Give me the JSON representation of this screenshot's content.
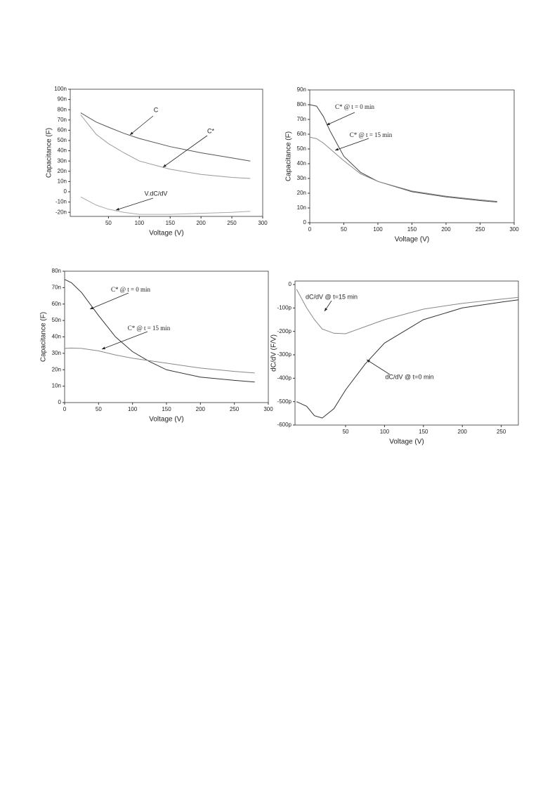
{
  "chart_data": [
    {
      "type": "line",
      "x_label": "Voltage (V)",
      "y_label": "Capacitance (F)",
      "x": [
        5,
        30,
        50,
        75,
        100,
        150,
        200,
        250,
        280
      ],
      "xlim": [
        -12,
        300
      ],
      "xticks": [
        50,
        100,
        150,
        200,
        250,
        300
      ],
      "ylim": [
        -24,
        100
      ],
      "yticks": [
        {
          "value": -20,
          "label": "-20n"
        },
        {
          "value": -10,
          "label": "-10n"
        },
        0,
        {
          "value": 10,
          "label": "10n"
        },
        {
          "value": 20,
          "label": "20n"
        },
        {
          "value": 30,
          "label": "30n"
        },
        {
          "value": 40,
          "label": "40n"
        },
        {
          "value": 50,
          "label": "50n"
        },
        {
          "value": 60,
          "label": "60n"
        },
        {
          "value": 70,
          "label": "70n"
        },
        {
          "value": 80,
          "label": "80n"
        },
        {
          "value": 90,
          "label": "90n"
        },
        {
          "value": 100,
          "label": "100n"
        }
      ],
      "series": [
        {
          "name": "C",
          "color": "#555555",
          "values": [
            77,
            68,
            63,
            57,
            52,
            44,
            38,
            33,
            30
          ]
        },
        {
          "name": "C*",
          "color": "#999999",
          "values": [
            75,
            56,
            47,
            38,
            30,
            22,
            17,
            14,
            13
          ]
        },
        {
          "name": "V.dC/dV",
          "color": "#aaaaaa",
          "values": [
            -5,
            -13,
            -17,
            -20,
            -22,
            -22,
            -21,
            -20,
            -19
          ]
        }
      ]
    },
    {
      "type": "line",
      "x_label": "Voltage (V)",
      "y_label": "Capacitance (F)",
      "x": [
        0,
        10,
        20,
        30,
        50,
        75,
        100,
        150,
        200,
        250,
        275
      ],
      "xlim": [
        0,
        300
      ],
      "xticks": [
        0,
        50,
        100,
        150,
        200,
        250,
        300
      ],
      "ylim": [
        0,
        90
      ],
      "yticks": [
        0,
        {
          "value": 10,
          "label": "10n"
        },
        {
          "value": 20,
          "label": "20n"
        },
        {
          "value": 30,
          "label": "30n"
        },
        {
          "value": 40,
          "label": "40n"
        },
        {
          "value": 50,
          "label": "50n"
        },
        {
          "value": 60,
          "label": "60n"
        },
        {
          "value": 70,
          "label": "70n"
        },
        {
          "value": 80,
          "label": "80n"
        },
        {
          "value": 90,
          "label": "90n"
        }
      ],
      "series": [
        {
          "name": "C* @ t = 0 min",
          "color": "#444444",
          "values": [
            80,
            79,
            72,
            62,
            45,
            34,
            28,
            21,
            17.5,
            15,
            14
          ]
        },
        {
          "name": "C* @ t = 15 min",
          "color": "#888888",
          "values": [
            58,
            57,
            54,
            50,
            42,
            33,
            28,
            21.5,
            18,
            15.5,
            14.5
          ]
        }
      ]
    },
    {
      "type": "line",
      "x_label": "Voltage (V)",
      "y_label": "Capacitance (F)",
      "x": [
        0,
        10,
        25,
        50,
        75,
        100,
        125,
        150,
        200,
        250,
        280
      ],
      "xlim": [
        0,
        300
      ],
      "xticks": [
        0,
        50,
        100,
        150,
        200,
        250,
        300
      ],
      "ylim": [
        0,
        80
      ],
      "yticks": [
        0,
        {
          "value": 10,
          "label": "10n"
        },
        {
          "value": 20,
          "label": "20n"
        },
        {
          "value": 30,
          "label": "30n"
        },
        {
          "value": 40,
          "label": "40n"
        },
        {
          "value": 50,
          "label": "50n"
        },
        {
          "value": 60,
          "label": "60n"
        },
        {
          "value": 70,
          "label": "70n"
        },
        {
          "value": 80,
          "label": "80n"
        }
      ],
      "series": [
        {
          "name": "C* @ t = 0 min",
          "color": "#333333",
          "values": [
            75,
            73,
            67,
            53,
            40,
            31,
            25,
            20,
            15.5,
            13.5,
            12.5
          ]
        },
        {
          "name": "C* @ t = 15 min",
          "color": "#888888",
          "values": [
            33,
            33.2,
            33,
            31.5,
            29,
            27,
            25.5,
            24,
            21,
            19,
            18
          ]
        }
      ]
    },
    {
      "type": "line",
      "x_label": "Voltage (V)",
      "y_label": "dC/dV (F/V)",
      "x": [
        -13,
        0,
        10,
        20,
        35,
        50,
        75,
        100,
        150,
        200,
        250,
        272
      ],
      "xlim": [
        -15,
        272
      ],
      "xticks": [
        50,
        100,
        150,
        200,
        250
      ],
      "ylim": [
        -600,
        15
      ],
      "yticks": [
        {
          "value": -600,
          "label": "-600p"
        },
        {
          "value": -500,
          "label": "-500p"
        },
        {
          "value": -400,
          "label": "-400p"
        },
        {
          "value": -300,
          "label": "-300p"
        },
        {
          "value": -200,
          "label": "-200p"
        },
        {
          "value": -100,
          "label": "-100p"
        },
        0
      ],
      "series": [
        {
          "name": "dC/dV @ t=15 min",
          "color": "#888888",
          "values": [
            -20,
            -100,
            -150,
            -190,
            -208,
            -210,
            -180,
            -150,
            -105,
            -80,
            -62,
            -55
          ]
        },
        {
          "name": "dC/dV @ t=0 min",
          "color": "#333333",
          "values": [
            -500,
            -520,
            -560,
            -570,
            -530,
            -450,
            -340,
            -250,
            -150,
            -100,
            -75,
            -65
          ]
        }
      ]
    }
  ]
}
